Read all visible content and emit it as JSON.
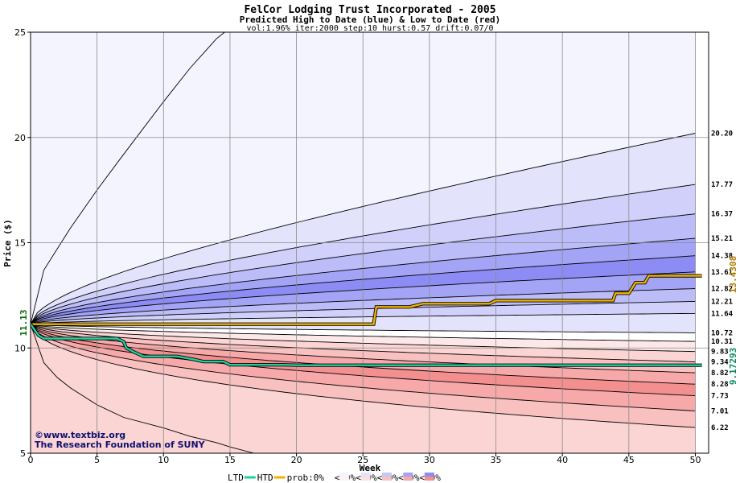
{
  "chart_data": {
    "type": "area",
    "title": "FelCor Lodging Trust Incorporated - 2005",
    "subtitle": "Predicted High to Date (blue) &  Low to Date (red)",
    "params": "vol:1.96% iter:2000 step:10 hurst:0.57 drift:0.07/0",
    "xlabel": "Week",
    "ylabel": "Price ($)",
    "xlim": [
      0,
      51
    ],
    "ylim": [
      5,
      25
    ],
    "xticks": [
      0,
      5,
      10,
      15,
      20,
      25,
      30,
      35,
      40,
      45,
      50
    ],
    "yticks": [
      5,
      10,
      15,
      20,
      25
    ],
    "grid": true,
    "start_price": 11.13,
    "start_label": "11.13",
    "quantile_end_values": [
      20.2,
      17.77,
      16.37,
      15.21,
      14.38,
      13.61,
      12.82,
      12.21,
      11.64,
      10.72,
      10.31,
      9.83,
      9.34,
      8.82,
      8.28,
      7.73,
      7.01,
      6.22
    ],
    "quantile_labels": [
      "20.20",
      "17.77",
      "16.37",
      "15.21",
      "14.38",
      "13.61",
      "12.82",
      "12.21",
      "11.64",
      "10.72",
      "10.31",
      "9.83",
      "9.34",
      "8.82",
      "8.28",
      "7.73",
      "7.01",
      "6.22"
    ],
    "band_colors": [
      "#f4f4fe",
      "#e3e3fc",
      "#d0d0fa",
      "#bcbcf8",
      "#a4a4f6",
      "#8c8cf4",
      "#a4a4f6",
      "#bcbcf8",
      "#d0d0fa",
      "#e3e3fc",
      "#ffffff",
      "#fce8e8",
      "#fbd4d4",
      "#f9c0c0",
      "#f7a9a9",
      "#f48f8f",
      "#f7a9a9",
      "#f9c0c0",
      "#fbd4d4"
    ],
    "envelope_upper": {
      "x": [
        0,
        1,
        2,
        3,
        5,
        7,
        10,
        12,
        13,
        14,
        14.6
      ],
      "y": [
        11.13,
        13.7,
        14.7,
        15.7,
        17.5,
        19.2,
        21.7,
        23.3,
        24.0,
        24.7,
        25
      ]
    },
    "envelope_lower": {
      "x": [
        0,
        1,
        2,
        3,
        5,
        7,
        10,
        12,
        14,
        15,
        16.8
      ],
      "y": [
        11.13,
        9.3,
        8.6,
        8.1,
        7.3,
        6.7,
        6.2,
        5.8,
        5.5,
        5.3,
        5.0
      ]
    },
    "series": [
      {
        "name": "LTD",
        "color": "#f0b400",
        "x": [
          0,
          1,
          25.8,
          26,
          28.5,
          29.5,
          34.5,
          35,
          43.8,
          44,
          45,
          45.5,
          46.2,
          46.5,
          50.5
        ],
        "y": [
          11.13,
          11.13,
          11.13,
          11.95,
          11.95,
          12.1,
          12.1,
          12.25,
          12.25,
          12.6,
          12.6,
          13.1,
          13.1,
          13.43,
          13.43
        ]
      },
      {
        "name": "HTD",
        "color": "#20d0a0",
        "x": [
          0,
          0.6,
          1,
          6.5,
          7,
          7.2,
          7.8,
          8.5,
          11,
          12.3,
          13,
          14.5,
          15,
          19,
          20,
          50.5
        ],
        "y": [
          11.13,
          10.6,
          10.45,
          10.45,
          10.3,
          10.0,
          9.8,
          9.6,
          9.6,
          9.45,
          9.35,
          9.35,
          9.2,
          9.2,
          9.18,
          9.18
        ]
      }
    ],
    "ltd_end_label": "13.4308",
    "htd_end_label": "9.17293",
    "legend": {
      "ltd": "LTD",
      "htd": "HTD",
      "prob_prefix": "prob:0%",
      "items": [
        "<10%",
        "<20%",
        "<30%",
        "<40%",
        "<50%"
      ],
      "swatches": [
        [
          "#ffffff",
          "#ffffff"
        ],
        [
          "#f4f4fe",
          "#fdf1f1"
        ],
        [
          "#e3e3fc",
          "#fce0e0"
        ],
        [
          "#c7c7f9",
          "#f9c0c0"
        ],
        [
          "#a4a4f6",
          "#f7a9a9"
        ],
        [
          "#8c8cf4",
          "#f48f8f"
        ]
      ]
    },
    "watermark": {
      "line1": "©www.textbiz.org",
      "line2": "The Research Foundation of SUNY"
    }
  }
}
